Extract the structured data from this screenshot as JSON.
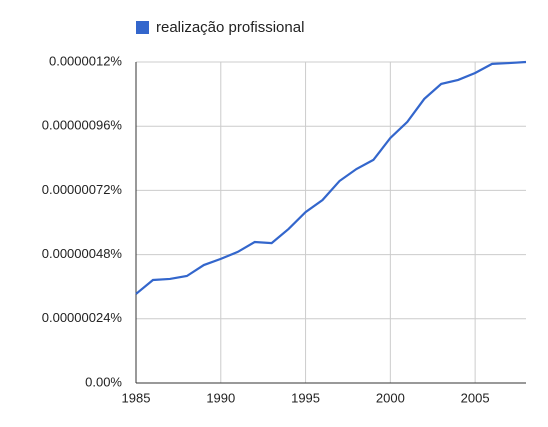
{
  "chart_data": {
    "type": "line",
    "x": [
      1985,
      1986,
      1987,
      1988,
      1989,
      1990,
      1991,
      1992,
      1993,
      1994,
      1995,
      1996,
      1997,
      1998,
      1999,
      2000,
      2001,
      2002,
      2003,
      2004,
      2005,
      2006,
      2007,
      2008
    ],
    "series": [
      {
        "name": "realização profissional",
        "color": "#3366cc",
        "values": [
          3.33e-07,
          3.85e-07,
          3.89e-07,
          4e-07,
          4.41e-07,
          4.64e-07,
          4.9e-07,
          5.27e-07,
          5.23e-07,
          5.76e-07,
          6.39e-07,
          6.84e-07,
          7.55e-07,
          8e-07,
          8.34e-07,
          9.16e-07,
          9.76e-07,
          1.062e-06,
          1.118e-06,
          1.133e-06,
          1.159e-06,
          1.193e-06,
          1.196e-06,
          1.2e-06
        ]
      }
    ],
    "xlim": [
      1985,
      2008
    ],
    "xticks": [
      1985,
      1990,
      1995,
      2000,
      2005
    ],
    "ylim": [
      0,
      1.2e-06
    ],
    "yticks": [
      {
        "value": 0,
        "label": "0.00%"
      },
      {
        "value": 2.4e-07,
        "label": "0.00000024%"
      },
      {
        "value": 4.8e-07,
        "label": "0.00000048%"
      },
      {
        "value": 7.2e-07,
        "label": "0.00000072%"
      },
      {
        "value": 9.6e-07,
        "label": "0.00000096%"
      },
      {
        "value": 1.2e-06,
        "label": "0.0000012%"
      }
    ],
    "grid": true,
    "legend": "top"
  }
}
